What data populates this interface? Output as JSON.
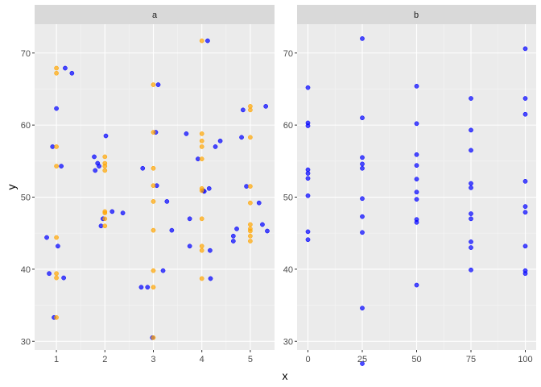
{
  "chart_data": {
    "type": "scatter",
    "xlabel": "x",
    "ylabel": "y",
    "ylim": [
      28.8,
      74.0
    ],
    "grid": true,
    "colors": {
      "panel_bg": "#ebebeb",
      "strip_bg": "#d9d9d9",
      "grid_major": "#ffffff",
      "grid_minor": "#f5f5f5",
      "jitter_points": "#0000ff",
      "raw_points": "#ffa500"
    },
    "y_ticks": [
      30,
      40,
      50,
      60,
      70
    ],
    "panels": [
      {
        "strip": "a",
        "xlim": [
          0.55,
          5.5
        ],
        "x_ticks": [
          1,
          2,
          3,
          4,
          5
        ],
        "series": [
          {
            "color": "#0000ff",
            "points": [
              [
                0.8,
                44.4
              ],
              [
                0.85,
                39.4
              ],
              [
                0.92,
                57.0
              ],
              [
                0.95,
                33.3
              ],
              [
                1.0,
                62.3
              ],
              [
                1.03,
                43.2
              ],
              [
                1.1,
                54.3
              ],
              [
                1.15,
                38.8
              ],
              [
                1.18,
                67.9
              ],
              [
                1.32,
                67.2
              ],
              [
                1.78,
                55.6
              ],
              [
                1.8,
                53.7
              ],
              [
                1.85,
                54.7
              ],
              [
                1.88,
                54.3
              ],
              [
                1.92,
                46.0
              ],
              [
                1.96,
                47.0
              ],
              [
                2.02,
                58.5
              ],
              [
                2.15,
                48.0
              ],
              [
                2.37,
                47.8
              ],
              [
                2.75,
                37.5
              ],
              [
                2.78,
                54.0
              ],
              [
                2.88,
                37.5
              ],
              [
                2.98,
                30.5
              ],
              [
                3.05,
                59.0
              ],
              [
                3.07,
                51.6
              ],
              [
                3.1,
                65.6
              ],
              [
                3.2,
                39.8
              ],
              [
                3.28,
                49.4
              ],
              [
                3.38,
                45.4
              ],
              [
                3.68,
                58.8
              ],
              [
                3.75,
                47.0
              ],
              [
                3.75,
                43.2
              ],
              [
                3.92,
                55.3
              ],
              [
                4.03,
                50.9
              ],
              [
                4.05,
                50.8
              ],
              [
                4.12,
                71.7
              ],
              [
                4.15,
                51.2
              ],
              [
                4.17,
                42.6
              ],
              [
                4.18,
                38.7
              ],
              [
                4.28,
                57.0
              ],
              [
                4.38,
                57.8
              ],
              [
                4.65,
                44.6
              ],
              [
                4.65,
                43.9
              ],
              [
                4.72,
                45.6
              ],
              [
                4.82,
                58.3
              ],
              [
                4.85,
                62.1
              ],
              [
                4.92,
                51.5
              ],
              [
                5.18,
                49.2
              ],
              [
                5.25,
                46.2
              ],
              [
                5.32,
                62.6
              ],
              [
                5.35,
                45.3
              ]
            ]
          },
          {
            "color": "#ffa500",
            "points": [
              [
                1,
                67.9
              ],
              [
                1,
                67.2
              ],
              [
                1,
                57.0
              ],
              [
                1,
                54.3
              ],
              [
                1,
                44.4
              ],
              [
                1,
                39.4
              ],
              [
                1,
                38.8
              ],
              [
                1,
                33.3
              ],
              [
                2,
                55.6
              ],
              [
                2,
                54.7
              ],
              [
                2,
                54.3
              ],
              [
                2,
                53.7
              ],
              [
                2,
                48.0
              ],
              [
                2,
                47.8
              ],
              [
                2,
                47.0
              ],
              [
                2,
                46.0
              ],
              [
                3,
                65.6
              ],
              [
                3,
                59.0
              ],
              [
                3,
                54.0
              ],
              [
                3,
                51.6
              ],
              [
                3,
                49.4
              ],
              [
                3,
                45.4
              ],
              [
                3,
                39.8
              ],
              [
                3,
                37.5
              ],
              [
                3,
                30.5
              ],
              [
                4,
                71.7
              ],
              [
                4,
                58.8
              ],
              [
                4,
                57.8
              ],
              [
                4,
                57.0
              ],
              [
                4,
                55.3
              ],
              [
                4,
                51.2
              ],
              [
                4,
                50.9
              ],
              [
                4,
                47.0
              ],
              [
                4,
                43.2
              ],
              [
                4,
                42.6
              ],
              [
                4,
                38.7
              ],
              [
                5,
                62.6
              ],
              [
                5,
                62.1
              ],
              [
                5,
                58.3
              ],
              [
                5,
                51.5
              ],
              [
                5,
                49.2
              ],
              [
                5,
                46.2
              ],
              [
                5,
                45.6
              ],
              [
                5,
                45.3
              ],
              [
                5,
                44.6
              ],
              [
                5,
                43.9
              ]
            ]
          }
        ]
      },
      {
        "strip": "b",
        "xlim": [
          -5,
          105
        ],
        "x_ticks": [
          0,
          25,
          50,
          75,
          100
        ],
        "series": [
          {
            "color": "#0000ff",
            "points": [
              [
                0,
                65.2
              ],
              [
                0,
                60.3
              ],
              [
                0,
                59.9
              ],
              [
                0,
                53.8
              ],
              [
                0,
                53.3
              ],
              [
                0,
                52.6
              ],
              [
                0,
                50.2
              ],
              [
                0,
                45.2
              ],
              [
                0,
                44.1
              ],
              [
                25,
                72.0
              ],
              [
                25,
                61.0
              ],
              [
                25,
                55.5
              ],
              [
                25,
                54.6
              ],
              [
                25,
                54.0
              ],
              [
                25,
                49.8
              ],
              [
                25,
                47.3
              ],
              [
                25,
                45.1
              ],
              [
                25,
                34.6
              ],
              [
                25,
                26.9
              ],
              [
                50,
                65.4
              ],
              [
                50,
                60.2
              ],
              [
                50,
                55.9
              ],
              [
                50,
                54.4
              ],
              [
                50,
                52.5
              ],
              [
                50,
                50.7
              ],
              [
                50,
                49.7
              ],
              [
                50,
                46.9
              ],
              [
                50,
                46.5
              ],
              [
                50,
                37.8
              ],
              [
                75,
                63.7
              ],
              [
                75,
                59.3
              ],
              [
                75,
                56.5
              ],
              [
                75,
                51.9
              ],
              [
                75,
                51.3
              ],
              [
                75,
                47.7
              ],
              [
                75,
                47.0
              ],
              [
                75,
                43.8
              ],
              [
                75,
                43.0
              ],
              [
                75,
                39.9
              ],
              [
                100,
                70.6
              ],
              [
                100,
                63.7
              ],
              [
                100,
                61.5
              ],
              [
                100,
                52.2
              ],
              [
                100,
                48.7
              ],
              [
                100,
                47.9
              ],
              [
                100,
                43.2
              ],
              [
                100,
                39.8
              ],
              [
                100,
                39.4
              ]
            ]
          }
        ]
      }
    ]
  }
}
